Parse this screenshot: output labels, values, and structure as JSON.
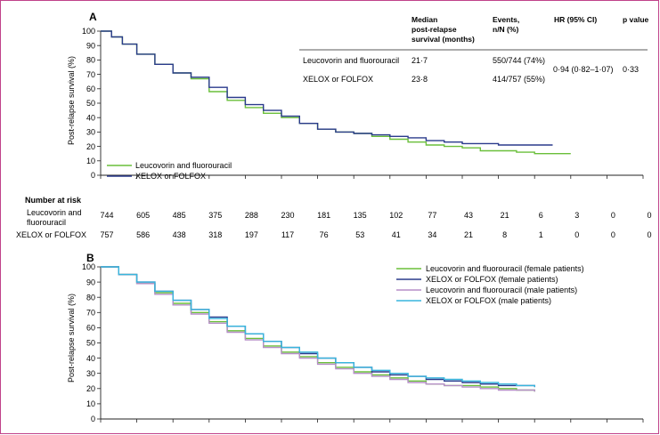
{
  "colors": {
    "border": "#c0428a",
    "green": "#6abf3a",
    "navy": "#2a3a8c",
    "grey": "#9a9a9a",
    "lilac": "#b68ec8",
    "cyan": "#38b6de",
    "rule": "#222222"
  },
  "table": {
    "headers": {
      "median": [
        "Median",
        "post-relapse",
        "survival (months)"
      ],
      "events": [
        "Events,",
        "n/N (%)"
      ],
      "hr": "HR (95% CI)",
      "p": "p value"
    },
    "rows": [
      {
        "label": "Leucovorin and fluorouracil",
        "median": "21·7",
        "events": "550/744 (74%)"
      },
      {
        "label": "XELOX or FOLFOX",
        "median": "23·8",
        "events": "414/757 (55%)"
      }
    ],
    "hr_value": "0·94 (0·82–1·07)",
    "p_value": "0·33"
  },
  "risk_table": {
    "title": "Number at risk",
    "rows": [
      {
        "label_lines": [
          "Leucovorin and",
          "fluorouracil"
        ],
        "values": [
          "744",
          "605",
          "485",
          "375",
          "288",
          "230",
          "181",
          "135",
          "102",
          "77",
          "43",
          "21",
          "6",
          "3",
          "0",
          "0"
        ]
      },
      {
        "label_lines": [
          "XELOX or FOLFOX"
        ],
        "values": [
          "757",
          "586",
          "438",
          "318",
          "197",
          "117",
          "76",
          "53",
          "41",
          "34",
          "21",
          "8",
          "1",
          "0",
          "0",
          "0"
        ]
      }
    ]
  },
  "chart_data": [
    {
      "type": "line",
      "panel_label": "A",
      "ylabel": "Post-relapse survival (%)",
      "ylim": [
        0,
        100
      ],
      "yticks": [
        0,
        10,
        20,
        30,
        40,
        50,
        60,
        70,
        80,
        90,
        100
      ],
      "xlim": [
        0,
        15
      ],
      "legend_position": "bottom-left",
      "legend": [
        "Leucovorin and fluorouracil",
        "XELOX or FOLFOX"
      ],
      "series": [
        {
          "name": "Leucovorin and fluorouracil",
          "color": "#6abf3a",
          "x": [
            0,
            0.3,
            0.6,
            1,
            1.5,
            2,
            2.5,
            3,
            3.5,
            4,
            4.5,
            5,
            5.5,
            6,
            6.5,
            7,
            7.5,
            8,
            8.5,
            9,
            9.5,
            10,
            10.5,
            11,
            11.5,
            12,
            12.5,
            13
          ],
          "y": [
            100,
            96,
            91,
            84,
            77,
            71,
            67,
            58,
            52,
            47,
            43,
            40,
            36,
            32,
            30,
            29,
            27,
            25,
            23,
            21,
            20,
            19,
            17,
            17,
            16,
            15,
            15,
            15
          ]
        },
        {
          "name": "XELOX or FOLFOX",
          "color": "#2a3a8c",
          "x": [
            0,
            0.3,
            0.6,
            1,
            1.5,
            2,
            2.5,
            3,
            3.5,
            4,
            4.5,
            5,
            5.5,
            6,
            6.5,
            7,
            7.5,
            8,
            8.5,
            9,
            9.5,
            10,
            10.5,
            11,
            11.5,
            12,
            12.5
          ],
          "y": [
            100,
            96,
            91,
            84,
            77,
            71,
            68,
            61,
            54,
            49,
            45,
            41,
            36,
            32,
            30,
            29,
            28,
            27,
            26,
            24,
            23,
            22,
            22,
            21,
            21,
            21,
            21
          ]
        }
      ]
    },
    {
      "type": "line",
      "panel_label": "B",
      "ylabel": "Post-relapse survival (%)",
      "ylim": [
        0,
        100
      ],
      "yticks": [
        0,
        10,
        20,
        30,
        40,
        50,
        60,
        70,
        80,
        90,
        100
      ],
      "xlim": [
        0,
        15
      ],
      "legend_position": "top-right",
      "legend": [
        "Leucovorin and fluorouracil (female patients)",
        "XELOX or FOLFOX (female patients)",
        "Leucovorin and fluorouracil (male patients)",
        "XELOX or FOLFOX (male patients)"
      ],
      "series": [
        {
          "name": "Leucovorin and fluorouracil (female patients)",
          "color": "#6abf3a",
          "x": [
            0,
            0.5,
            1,
            1.5,
            2,
            2.5,
            3,
            3.5,
            4,
            4.5,
            5,
            5.5,
            6,
            6.5,
            7,
            7.5,
            8,
            8.5,
            9,
            9.5,
            10,
            10.5,
            11,
            11.5,
            12
          ],
          "y": [
            100,
            95,
            89,
            83,
            76,
            70,
            64,
            58,
            53,
            48,
            44,
            41,
            37,
            34,
            31,
            29,
            27,
            25,
            23,
            22,
            22,
            21,
            20,
            19,
            18
          ]
        },
        {
          "name": "XELOX or FOLFOX (female patients)",
          "color": "#2a3a8c",
          "x": [
            0,
            0.5,
            1,
            1.5,
            2,
            2.5,
            3,
            3.5,
            4,
            4.5,
            5,
            5.5,
            6,
            6.5,
            7,
            7.5,
            8,
            8.5,
            9,
            9.5,
            10,
            10.5,
            11,
            11.5,
            12
          ],
          "y": [
            100,
            95,
            90,
            84,
            78,
            72,
            67,
            61,
            56,
            51,
            47,
            43,
            40,
            37,
            34,
            31,
            29,
            28,
            26,
            25,
            24,
            23,
            22,
            22,
            21
          ]
        },
        {
          "name": "Leucovorin and fluorouracil (male patients)",
          "color": "#b68ec8",
          "x": [
            0,
            0.5,
            1,
            1.5,
            2,
            2.5,
            3,
            3.5,
            4,
            4.5,
            5,
            5.5,
            6,
            6.5,
            7,
            7.5,
            8,
            8.5,
            9,
            9.5,
            10,
            10.5,
            11,
            11.5,
            12
          ],
          "y": [
            100,
            95,
            89,
            82,
            75,
            69,
            63,
            57,
            52,
            47,
            43,
            40,
            36,
            33,
            30,
            28,
            26,
            24,
            23,
            22,
            21,
            20,
            19,
            19,
            18
          ]
        },
        {
          "name": "XELOX or FOLFOX (male patients)",
          "color": "#38b6de",
          "x": [
            0,
            0.5,
            1,
            1.5,
            2,
            2.5,
            3,
            3.5,
            4,
            4.5,
            5,
            5.5,
            6,
            6.5,
            7,
            7.5,
            8,
            8.5,
            9,
            9.5,
            10,
            10.5,
            11,
            11.5,
            12
          ],
          "y": [
            100,
            95,
            90,
            84,
            78,
            72,
            66,
            61,
            56,
            51,
            47,
            44,
            40,
            37,
            34,
            32,
            30,
            28,
            27,
            26,
            25,
            24,
            23,
            22,
            21
          ]
        }
      ]
    }
  ]
}
